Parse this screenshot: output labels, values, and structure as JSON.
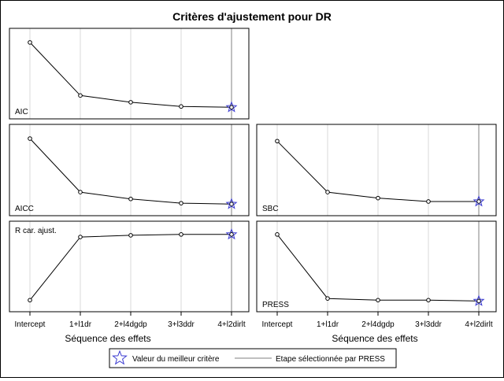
{
  "chart_data": [
    {
      "type": "line",
      "label": "AIC",
      "categories": [
        "Intercept",
        "1+l1dr",
        "2+l4dgdp",
        "3+l3ddr",
        "4+l2dirlt"
      ],
      "values": [
        0.87,
        0.24,
        0.16,
        0.11,
        0.1
      ],
      "ylim": [
        0,
        1
      ],
      "best_index": 4,
      "selected_step": "4+l2dirlt"
    },
    {
      "type": "line",
      "label": "AICC",
      "categories": [
        "Intercept",
        "1+l1dr",
        "2+l4dgdp",
        "3+l3ddr",
        "4+l2dirlt"
      ],
      "values": [
        0.87,
        0.24,
        0.16,
        0.11,
        0.1
      ],
      "ylim": [
        0,
        1
      ],
      "best_index": 4,
      "selected_step": "4+l2dirlt"
    },
    {
      "type": "line",
      "label": "SBC",
      "categories": [
        "Intercept",
        "1+l1dr",
        "2+l4dgdp",
        "3+l3ddr",
        "4+l2dirlt"
      ],
      "values": [
        0.84,
        0.24,
        0.17,
        0.13,
        0.13
      ],
      "ylim": [
        0,
        1
      ],
      "best_index": 4,
      "selected_step": "4+l2dirlt"
    },
    {
      "type": "line",
      "label": "R car. ajust.",
      "categories": [
        "Intercept",
        "1+l1dr",
        "2+l4dgdp",
        "3+l3ddr",
        "4+l2dirlt"
      ],
      "values": [
        0.1,
        0.85,
        0.87,
        0.88,
        0.88
      ],
      "ylim": [
        0,
        1
      ],
      "best_index": 4,
      "selected_step": "4+l2dirlt"
    },
    {
      "type": "line",
      "label": "PRESS",
      "categories": [
        "Intercept",
        "1+l1dr",
        "2+l4dgdp",
        "3+l3ddr",
        "4+l2dirlt"
      ],
      "values": [
        0.88,
        0.12,
        0.1,
        0.1,
        0.09
      ],
      "ylim": [
        0,
        1
      ],
      "best_index": 4,
      "selected_step": "4+l2dirlt"
    }
  ],
  "figure": {
    "title": "Critères d'ajustement pour DR",
    "xlabel": "Séquence des effets",
    "legend": {
      "best_label": "Valeur du meilleur critère",
      "step_label": "Etape sélectionnée par PRESS"
    }
  },
  "colors": {
    "line": "#000000",
    "marker_fill": "#ffffff",
    "best_star": "#3b3bd1",
    "selected_line": "#808080",
    "grid": "#d9d9d9",
    "frame": "#000000"
  }
}
